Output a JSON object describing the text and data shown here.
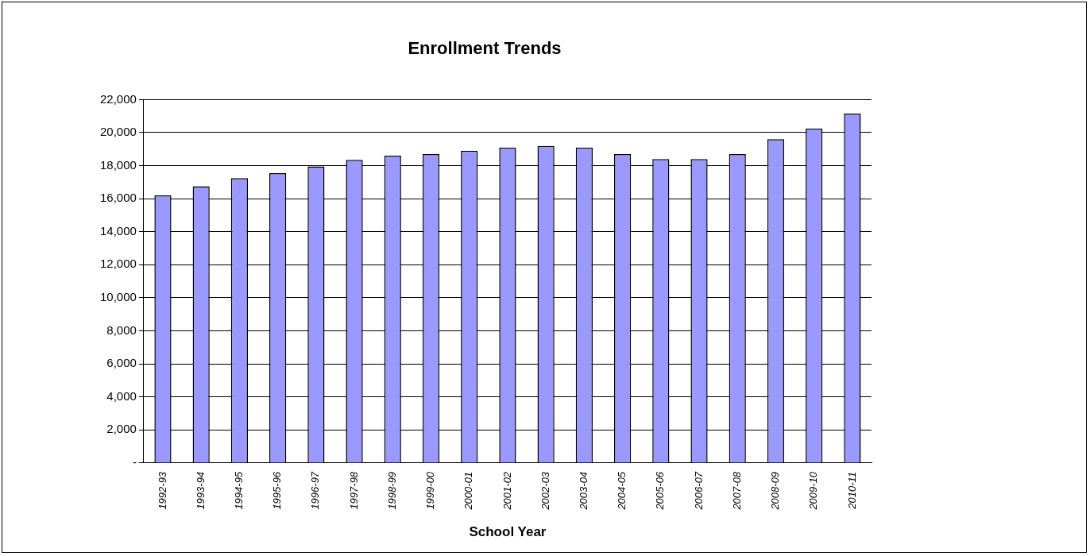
{
  "chart_data": {
    "type": "bar",
    "title": "Enrollment Trends",
    "xlabel": "School Year",
    "categories": [
      "1992-93",
      "1993-94",
      "1994-95",
      "1995-96",
      "1996-97",
      "1997-98",
      "1998-99",
      "1999-00",
      "2000-01",
      "2001-02",
      "2002-03",
      "2003-04",
      "2004-05",
      "2005-06",
      "2006-07",
      "2007-08",
      "2008-09",
      "2009-10",
      "2010-11"
    ],
    "values": [
      16200,
      16750,
      17250,
      17550,
      17950,
      18350,
      18600,
      18700,
      18900,
      19100,
      19200,
      19100,
      18700,
      18400,
      18400,
      18700,
      19600,
      20250,
      21150
    ],
    "color": "#9999ff",
    "ylim": [
      0,
      22000
    ],
    "yticks": [
      {
        "value": 0,
        "label": "-"
      },
      {
        "value": 2000,
        "label": "2,000"
      },
      {
        "value": 4000,
        "label": "4,000"
      },
      {
        "value": 6000,
        "label": "6,000"
      },
      {
        "value": 8000,
        "label": "8,000"
      },
      {
        "value": 10000,
        "label": "10,000"
      },
      {
        "value": 12000,
        "label": "12,000"
      },
      {
        "value": 14000,
        "label": "14,000"
      },
      {
        "value": 16000,
        "label": "16,000"
      },
      {
        "value": 18000,
        "label": "18,000"
      },
      {
        "value": 20000,
        "label": "20,000"
      },
      {
        "value": 22000,
        "label": "22,000"
      }
    ],
    "grid": "y",
    "legend": false
  }
}
